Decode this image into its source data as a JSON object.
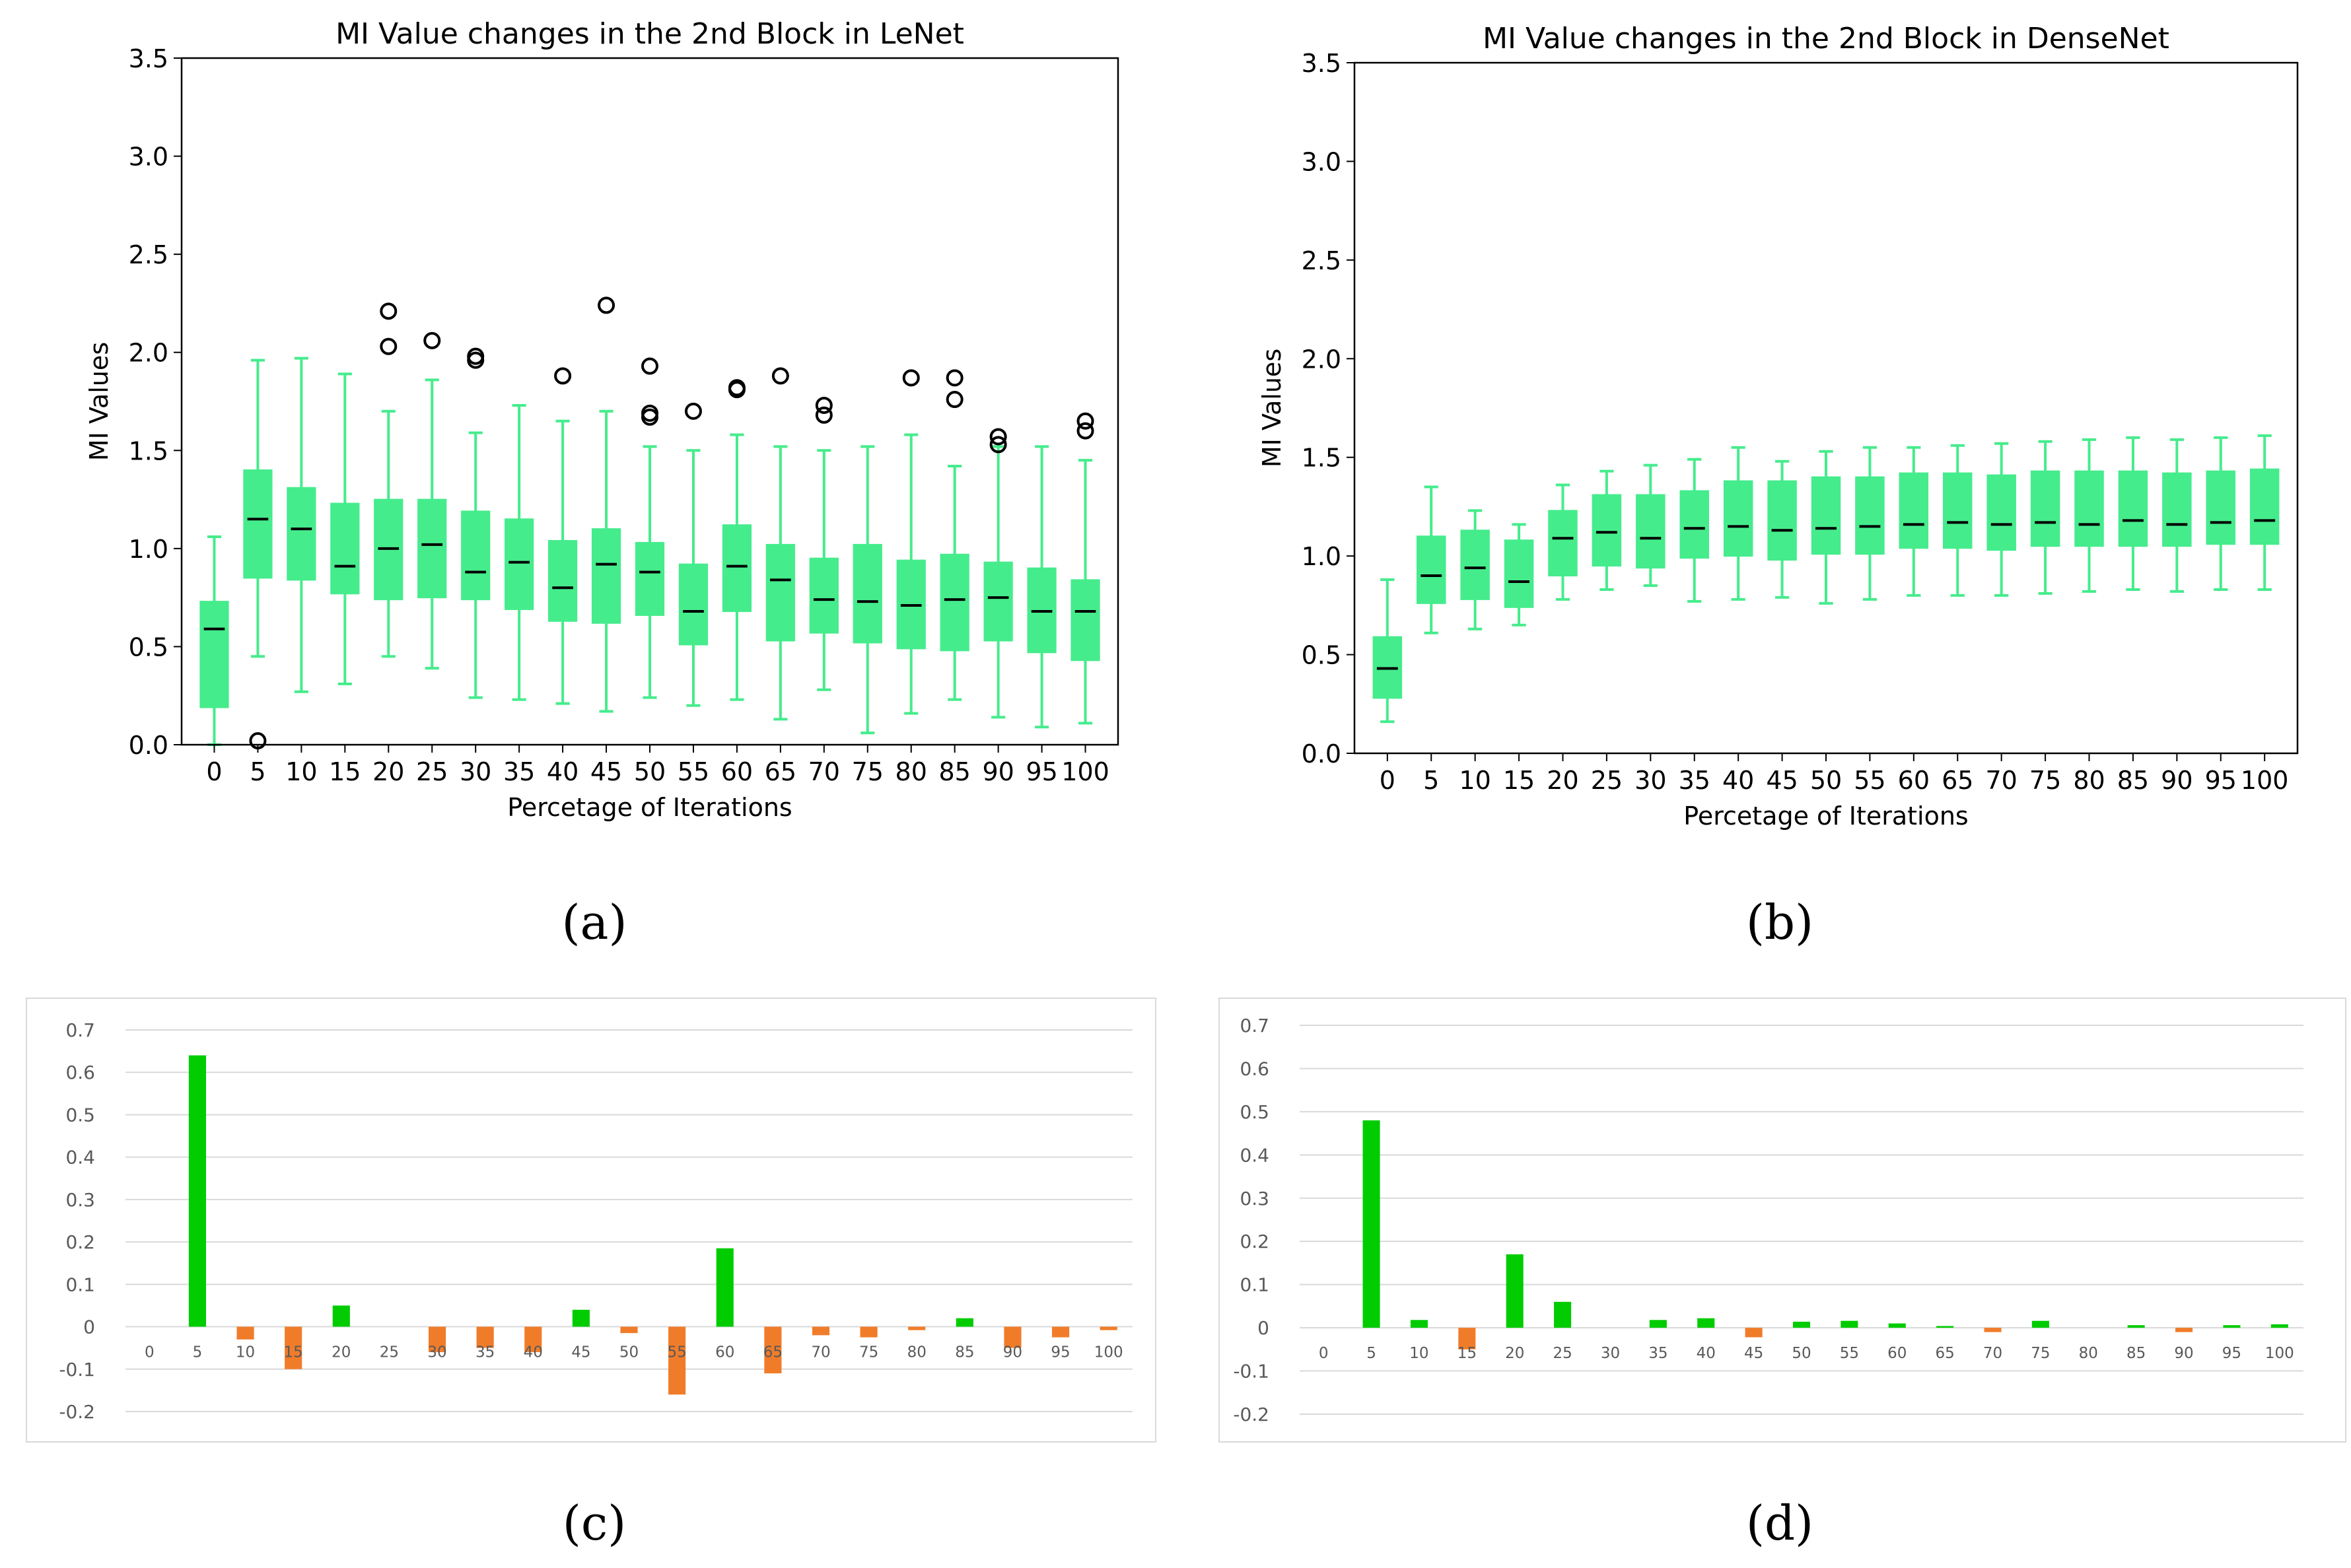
{
  "captions": {
    "a": "(a)",
    "b": "(b)",
    "c": "(c)",
    "d": "(d)"
  },
  "chart_data": [
    {
      "id": "a",
      "type": "box",
      "title": "MI Value changes in the 2nd Block in LeNet",
      "xlabel": "Percetage of Iterations",
      "ylabel": "MI Values",
      "ylim": [
        0,
        3.5
      ],
      "yticks": [
        "0.0",
        "0.5",
        "1.0",
        "1.5",
        "2.0",
        "2.5",
        "3.0",
        "3.5"
      ],
      "categories": [
        "0",
        "5",
        "10",
        "15",
        "20",
        "25",
        "30",
        "35",
        "40",
        "45",
        "50",
        "55",
        "60",
        "65",
        "70",
        "75",
        "80",
        "85",
        "90",
        "95",
        "100"
      ],
      "boxes": [
        {
          "min": 0.0,
          "q1": 0.19,
          "median": 0.59,
          "q3": 0.73,
          "max": 1.06,
          "outliers": []
        },
        {
          "min": 0.45,
          "q1": 0.85,
          "median": 1.15,
          "q3": 1.4,
          "max": 1.96,
          "outliers": [
            0.02
          ]
        },
        {
          "min": 0.27,
          "q1": 0.84,
          "median": 1.1,
          "q3": 1.31,
          "max": 1.97,
          "outliers": []
        },
        {
          "min": 0.31,
          "q1": 0.77,
          "median": 0.91,
          "q3": 1.23,
          "max": 1.89,
          "outliers": []
        },
        {
          "min": 0.45,
          "q1": 0.74,
          "median": 1.0,
          "q3": 1.25,
          "max": 1.7,
          "outliers": [
            2.03,
            2.21
          ]
        },
        {
          "min": 0.39,
          "q1": 0.75,
          "median": 1.02,
          "q3": 1.25,
          "max": 1.86,
          "outliers": [
            2.06
          ]
        },
        {
          "min": 0.24,
          "q1": 0.74,
          "median": 0.88,
          "q3": 1.19,
          "max": 1.59,
          "outliers": [
            1.96,
            1.98
          ]
        },
        {
          "min": 0.23,
          "q1": 0.69,
          "median": 0.93,
          "q3": 1.15,
          "max": 1.73,
          "outliers": []
        },
        {
          "min": 0.21,
          "q1": 0.63,
          "median": 0.8,
          "q3": 1.04,
          "max": 1.65,
          "outliers": [
            1.88
          ]
        },
        {
          "min": 0.17,
          "q1": 0.62,
          "median": 0.92,
          "q3": 1.1,
          "max": 1.7,
          "outliers": [
            2.24
          ]
        },
        {
          "min": 0.24,
          "q1": 0.66,
          "median": 0.88,
          "q3": 1.03,
          "max": 1.52,
          "outliers": [
            1.67,
            1.69,
            1.93
          ]
        },
        {
          "min": 0.2,
          "q1": 0.51,
          "median": 0.68,
          "q3": 0.92,
          "max": 1.5,
          "outliers": [
            1.7
          ]
        },
        {
          "min": 0.23,
          "q1": 0.68,
          "median": 0.91,
          "q3": 1.12,
          "max": 1.58,
          "outliers": [
            1.81,
            1.82
          ]
        },
        {
          "min": 0.13,
          "q1": 0.53,
          "median": 0.84,
          "q3": 1.02,
          "max": 1.52,
          "outliers": [
            1.88
          ]
        },
        {
          "min": 0.28,
          "q1": 0.57,
          "median": 0.74,
          "q3": 0.95,
          "max": 1.5,
          "outliers": [
            1.68,
            1.73
          ]
        },
        {
          "min": 0.06,
          "q1": 0.52,
          "median": 0.73,
          "q3": 1.02,
          "max": 1.52,
          "outliers": []
        },
        {
          "min": 0.16,
          "q1": 0.49,
          "median": 0.71,
          "q3": 0.94,
          "max": 1.58,
          "outliers": [
            1.87
          ]
        },
        {
          "min": 0.23,
          "q1": 0.48,
          "median": 0.74,
          "q3": 0.97,
          "max": 1.42,
          "outliers": [
            1.76,
            1.87
          ]
        },
        {
          "min": 0.14,
          "q1": 0.53,
          "median": 0.75,
          "q3": 0.93,
          "max": 1.52,
          "outliers": [
            1.53,
            1.57
          ]
        },
        {
          "min": 0.09,
          "q1": 0.47,
          "median": 0.68,
          "q3": 0.9,
          "max": 1.52,
          "outliers": []
        },
        {
          "min": 0.11,
          "q1": 0.43,
          "median": 0.68,
          "q3": 0.84,
          "max": 1.45,
          "outliers": [
            1.6,
            1.65
          ]
        }
      ]
    },
    {
      "id": "b",
      "type": "box",
      "title": "MI Value changes in the 2nd Block in DenseNet",
      "xlabel": "Percetage of Iterations",
      "ylabel": "MI Values",
      "ylim": [
        0,
        3.5
      ],
      "yticks": [
        "0.0",
        "0.5",
        "1.0",
        "1.5",
        "2.0",
        "2.5",
        "3.0",
        "3.5"
      ],
      "categories": [
        "0",
        "5",
        "10",
        "15",
        "20",
        "25",
        "30",
        "35",
        "40",
        "45",
        "50",
        "55",
        "60",
        "65",
        "70",
        "75",
        "80",
        "85",
        "90",
        "95",
        "100"
      ],
      "boxes": [
        {
          "min": 0.16,
          "q1": 0.28,
          "median": 0.43,
          "q3": 0.59,
          "max": 0.88,
          "outliers": []
        },
        {
          "min": 0.61,
          "q1": 0.76,
          "median": 0.9,
          "q3": 1.1,
          "max": 1.35,
          "outliers": []
        },
        {
          "min": 0.63,
          "q1": 0.78,
          "median": 0.94,
          "q3": 1.13,
          "max": 1.23,
          "outliers": []
        },
        {
          "min": 0.65,
          "q1": 0.74,
          "median": 0.87,
          "q3": 1.08,
          "max": 1.16,
          "outliers": []
        },
        {
          "min": 0.78,
          "q1": 0.9,
          "median": 1.09,
          "q3": 1.23,
          "max": 1.36,
          "outliers": []
        },
        {
          "min": 0.83,
          "q1": 0.95,
          "median": 1.12,
          "q3": 1.31,
          "max": 1.43,
          "outliers": []
        },
        {
          "min": 0.85,
          "q1": 0.94,
          "median": 1.09,
          "q3": 1.31,
          "max": 1.46,
          "outliers": []
        },
        {
          "min": 0.77,
          "q1": 0.99,
          "median": 1.14,
          "q3": 1.33,
          "max": 1.49,
          "outliers": []
        },
        {
          "min": 0.78,
          "q1": 1.0,
          "median": 1.15,
          "q3": 1.38,
          "max": 1.55,
          "outliers": []
        },
        {
          "min": 0.79,
          "q1": 0.98,
          "median": 1.13,
          "q3": 1.38,
          "max": 1.48,
          "outliers": []
        },
        {
          "min": 0.76,
          "q1": 1.01,
          "median": 1.14,
          "q3": 1.4,
          "max": 1.53,
          "outliers": []
        },
        {
          "min": 0.78,
          "q1": 1.01,
          "median": 1.15,
          "q3": 1.4,
          "max": 1.55,
          "outliers": []
        },
        {
          "min": 0.8,
          "q1": 1.04,
          "median": 1.16,
          "q3": 1.42,
          "max": 1.55,
          "outliers": []
        },
        {
          "min": 0.8,
          "q1": 1.04,
          "median": 1.17,
          "q3": 1.42,
          "max": 1.56,
          "outliers": []
        },
        {
          "min": 0.8,
          "q1": 1.03,
          "median": 1.16,
          "q3": 1.41,
          "max": 1.57,
          "outliers": []
        },
        {
          "min": 0.81,
          "q1": 1.05,
          "median": 1.17,
          "q3": 1.43,
          "max": 1.58,
          "outliers": []
        },
        {
          "min": 0.82,
          "q1": 1.05,
          "median": 1.16,
          "q3": 1.43,
          "max": 1.59,
          "outliers": []
        },
        {
          "min": 0.83,
          "q1": 1.05,
          "median": 1.18,
          "q3": 1.43,
          "max": 1.6,
          "outliers": []
        },
        {
          "min": 0.82,
          "q1": 1.05,
          "median": 1.16,
          "q3": 1.42,
          "max": 1.59,
          "outliers": []
        },
        {
          "min": 0.83,
          "q1": 1.06,
          "median": 1.17,
          "q3": 1.43,
          "max": 1.6,
          "outliers": []
        },
        {
          "min": 0.83,
          "q1": 1.06,
          "median": 1.18,
          "q3": 1.44,
          "max": 1.61,
          "outliers": []
        }
      ]
    },
    {
      "id": "c",
      "type": "bar",
      "ylim": [
        -0.2,
        0.7
      ],
      "yticks": [
        "0.7",
        "0.6",
        "0.5",
        "0.4",
        "0.3",
        "0.2",
        "0.1",
        "0",
        "-0.1",
        "-0.2"
      ],
      "categories": [
        "0",
        "5",
        "10",
        "15",
        "20",
        "25",
        "30",
        "35",
        "40",
        "45",
        "50",
        "55",
        "60",
        "65",
        "70",
        "75",
        "80",
        "85",
        "90",
        "95",
        "100"
      ],
      "values": [
        0,
        0.64,
        -0.03,
        -0.1,
        0.05,
        0,
        -0.06,
        -0.05,
        -0.06,
        0.04,
        -0.015,
        -0.16,
        0.185,
        -0.11,
        -0.02,
        -0.025,
        -0.008,
        0.02,
        -0.05,
        -0.025,
        -0.008
      ]
    },
    {
      "id": "d",
      "type": "bar",
      "ylim": [
        -0.2,
        0.7
      ],
      "yticks": [
        "0.7",
        "0.6",
        "0.5",
        "0.4",
        "0.3",
        "0.2",
        "0.1",
        "0",
        "-0.1",
        "-0.2"
      ],
      "categories": [
        "0",
        "5",
        "10",
        "15",
        "20",
        "25",
        "30",
        "35",
        "40",
        "45",
        "50",
        "55",
        "60",
        "65",
        "70",
        "75",
        "80",
        "85",
        "90",
        "95",
        "100"
      ],
      "values": [
        0,
        0.48,
        0.018,
        -0.05,
        0.17,
        0.06,
        0,
        0.018,
        0.022,
        -0.022,
        0.014,
        0.016,
        0.01,
        0.004,
        -0.01,
        0.016,
        0,
        0.006,
        -0.01,
        0.006,
        0.008
      ]
    }
  ],
  "colors": {
    "box": "#45ec8c",
    "median": "#000000",
    "positive": "#00cc00",
    "negative": "#f07c2a",
    "grid": "#d9d9d9",
    "tick_text": "#595959"
  }
}
